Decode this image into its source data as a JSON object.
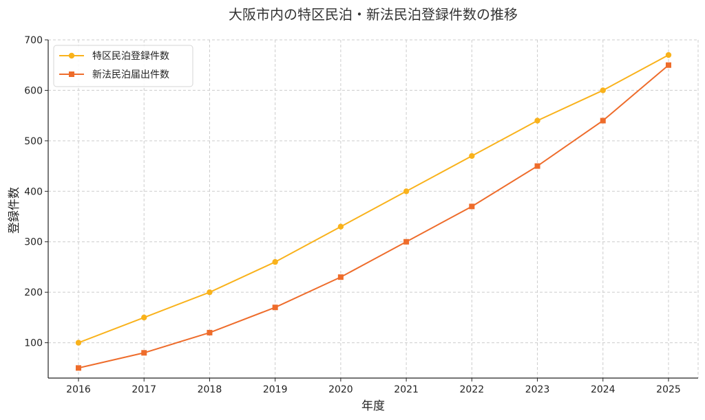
{
  "chart_data": {
    "type": "line",
    "title": "大阪市内の特区民泊・新法民泊登録件数の推移",
    "xlabel": "年度",
    "ylabel": "登録件数",
    "categories": [
      "2016",
      "2017",
      "2018",
      "2019",
      "2020",
      "2021",
      "2022",
      "2023",
      "2024",
      "2025"
    ],
    "ylim": [
      30,
      700
    ],
    "yticks": [
      100,
      200,
      300,
      400,
      500,
      600,
      700
    ],
    "grid": true,
    "legend_position": "top-left",
    "series": [
      {
        "name": "特区民泊登録件数",
        "values": [
          100,
          150,
          200,
          260,
          330,
          400,
          470,
          540,
          600,
          670
        ],
        "color": "#F9B21B",
        "marker": "circle"
      },
      {
        "name": "新法民泊届出件数",
        "values": [
          50,
          80,
          120,
          170,
          230,
          300,
          370,
          450,
          540,
          650
        ],
        "color": "#EE6C2B",
        "marker": "square"
      }
    ]
  }
}
